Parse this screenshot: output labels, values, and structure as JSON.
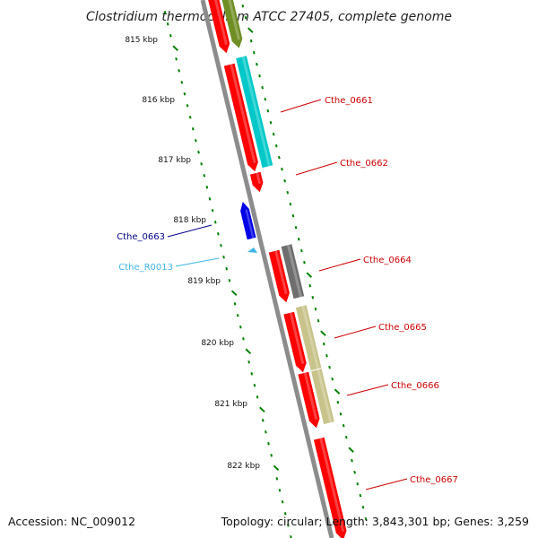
{
  "title": "Clostridium thermocellum ATCC 27405, complete genome",
  "accession": "Accession: NC_009012",
  "summary": "Topology: circular; Length: 3,843,301 bp; Genes: 3,259",
  "scale_labels": [
    "815 kbp",
    "816 kbp",
    "817 kbp",
    "818 kbp",
    "819 kbp",
    "820 kbp",
    "821 kbp",
    "822 kbp"
  ],
  "colors": {
    "cds": "#ff0000",
    "olive": "#6f8e23",
    "cyan": "#00c8c8",
    "gray_feature": "#6e6e6e",
    "khaki": "#c8c38a",
    "blue": "#0000e6",
    "rna": "#3fb6e8",
    "backbone": "#8c8c8c",
    "tick": "#008000",
    "label_red": "#cc0000",
    "label_blue": "#00008b",
    "label_cyan": "#3fb6e8"
  },
  "genes": [
    {
      "label": "Cthe_0661",
      "color": "label_red"
    },
    {
      "label": "Cthe_0662",
      "color": "label_red"
    },
    {
      "label": "Cthe_0663",
      "color": "label_blue"
    },
    {
      "label": "Cthe_R0013",
      "color": "label_cyan"
    },
    {
      "label": "Cthe_0664",
      "color": "label_red"
    },
    {
      "label": "Cthe_0665",
      "color": "label_red"
    },
    {
      "label": "Cthe_0666",
      "color": "label_red"
    },
    {
      "label": "Cthe_0667",
      "color": "label_red"
    }
  ]
}
